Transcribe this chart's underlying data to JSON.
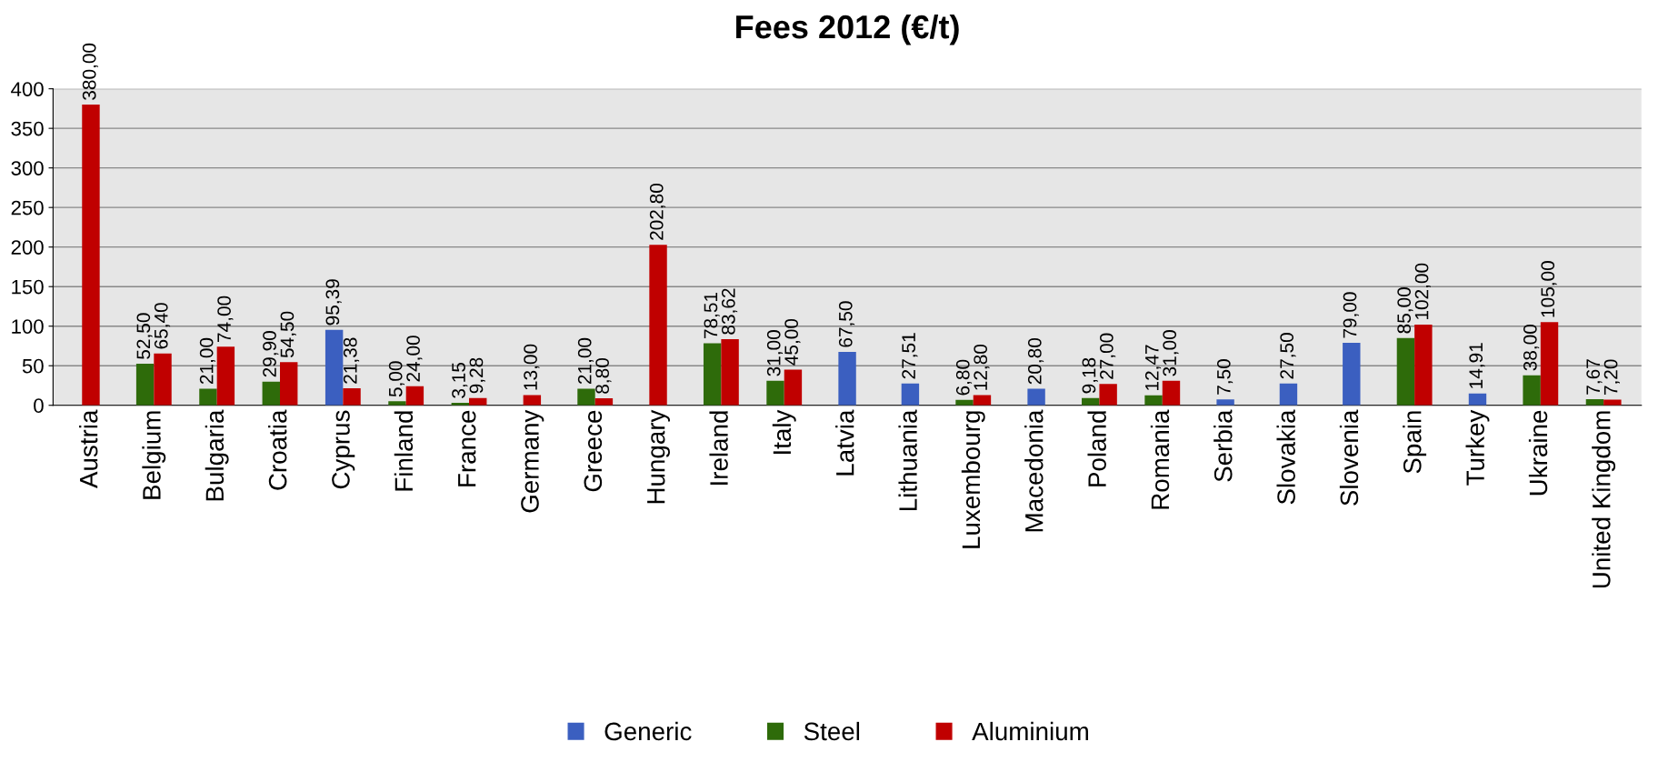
{
  "chart_data": {
    "type": "bar",
    "title": "Fees 2012 (€/t)",
    "categories": [
      "Austria",
      "Belgium",
      "Bulgaria",
      "Croatia",
      "Cyprus",
      "Finland",
      "France",
      "Germany",
      "Greece",
      "Hungary",
      "Ireland",
      "Italy",
      "Latvia",
      "Lithuania",
      "Luxembourg",
      "Macedonia",
      "Poland",
      "Romania",
      "Serbia",
      "Slovakia",
      "Slovenia",
      "Spain",
      "Turkey",
      "Ukraine",
      "United Kingdom"
    ],
    "series": [
      {
        "name": "Generic",
        "color": "#3b5fc0",
        "values": [
          null,
          null,
          null,
          null,
          95.39,
          null,
          null,
          null,
          null,
          null,
          null,
          null,
          67.5,
          27.51,
          null,
          20.8,
          null,
          null,
          7.5,
          27.5,
          79.0,
          null,
          14.91,
          null,
          null
        ],
        "value_labels": [
          null,
          null,
          null,
          null,
          "95,39",
          null,
          null,
          null,
          null,
          null,
          null,
          null,
          "67,50",
          "27,51",
          null,
          "20,80",
          null,
          null,
          "7,50",
          "27,50",
          "79,00",
          null,
          "14,91",
          null,
          null
        ]
      },
      {
        "name": "Steel",
        "color": "#2e6b0a",
        "values": [
          null,
          52.5,
          21.0,
          29.9,
          null,
          5.0,
          3.15,
          null,
          21.0,
          null,
          78.51,
          31.0,
          null,
          null,
          6.8,
          null,
          9.18,
          12.47,
          null,
          null,
          null,
          85.0,
          null,
          38.0,
          7.67
        ],
        "value_labels": [
          null,
          "52,50",
          "21,00",
          "29,90",
          null,
          "5,00",
          "3,15",
          null,
          "21,00",
          null,
          "78,51",
          "31,00",
          null,
          null,
          "6,80",
          null,
          "9,18",
          "12,47",
          null,
          null,
          null,
          "85,00",
          null,
          "38,00",
          "7,67"
        ]
      },
      {
        "name": "Aluminium",
        "color": "#c00000",
        "values": [
          380.0,
          65.4,
          74.0,
          54.5,
          21.38,
          24.0,
          9.28,
          13.0,
          8.8,
          202.8,
          83.62,
          45.0,
          null,
          null,
          12.8,
          null,
          27.0,
          31.0,
          null,
          null,
          null,
          102.0,
          null,
          105.0,
          7.2
        ],
        "value_labels": [
          "380,00",
          "65,40",
          "74,00",
          "54,50",
          "21,38",
          "24,00",
          "9,28",
          "13,00",
          "8,80",
          "202,80",
          "83,62",
          "45,00",
          null,
          null,
          "12,80",
          null,
          "27,00",
          "31,00",
          null,
          null,
          null,
          "102,00",
          null,
          "105,00",
          "7,20"
        ]
      }
    ],
    "ylim": [
      0,
      400
    ],
    "yticks": [
      0,
      50,
      100,
      150,
      200,
      250,
      300,
      350,
      400
    ],
    "grid": "y",
    "legend": "bottom"
  }
}
